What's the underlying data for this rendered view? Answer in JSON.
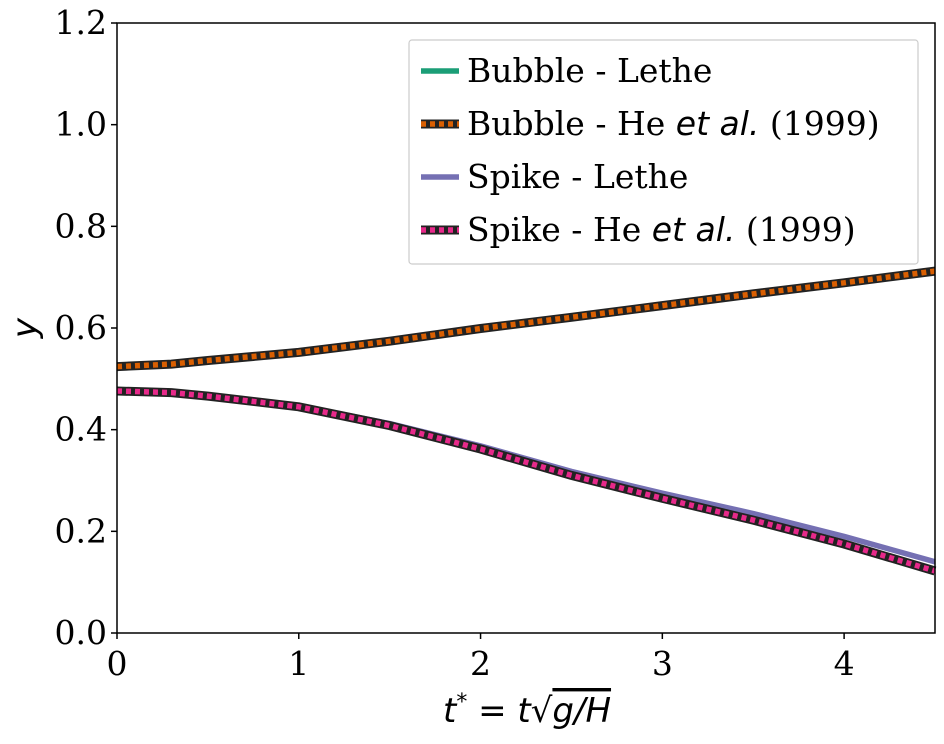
{
  "chart_data": {
    "type": "line",
    "xlabel": "t* = t√g/H",
    "xlabel_parts": {
      "t_star": "t",
      "star": "*",
      "eq": " = t",
      "radicand": "g/H"
    },
    "ylabel": "y",
    "xlim": [
      0,
      4.5
    ],
    "ylim": [
      0,
      1.2
    ],
    "xticks": [
      0,
      1,
      2,
      3,
      4
    ],
    "xtick_labels": [
      "0",
      "1",
      "2",
      "3",
      "4"
    ],
    "yticks": [
      0.0,
      0.2,
      0.4,
      0.6,
      0.8,
      1.0,
      1.2
    ],
    "ytick_labels": [
      "0.0",
      "0.2",
      "0.4",
      "0.6",
      "0.8",
      "1.0",
      "1.2"
    ],
    "grid": false,
    "legend_position": "top-right",
    "series": [
      {
        "name": "Bubble - Lethe",
        "name_parts": {
          "pre": "Bubble - Lethe",
          "italic": "",
          "post": ""
        },
        "style": "solid",
        "color": "#1b9e77",
        "x": [
          0,
          0.3,
          0.5,
          1.0,
          1.5,
          2.0,
          2.5,
          3.0,
          3.5,
          4.0,
          4.5
        ],
        "y": [
          0.525,
          0.53,
          0.537,
          0.553,
          0.575,
          0.6,
          0.622,
          0.645,
          0.668,
          0.69,
          0.713
        ]
      },
      {
        "name": "Bubble - He et al. (1999)",
        "name_parts": {
          "pre": "Bubble - He ",
          "italic": "et al.",
          "post": " (1999)"
        },
        "style": "dotted",
        "color": "#d95f02",
        "x": [
          0,
          0.3,
          0.5,
          1.0,
          1.5,
          2.0,
          2.5,
          3.0,
          3.5,
          4.0,
          4.5
        ],
        "y": [
          0.524,
          0.529,
          0.536,
          0.552,
          0.574,
          0.599,
          0.621,
          0.644,
          0.667,
          0.689,
          0.712
        ]
      },
      {
        "name": "Spike - Lethe",
        "name_parts": {
          "pre": "Spike - Lethe",
          "italic": "",
          "post": ""
        },
        "style": "solid",
        "color": "#7570b3",
        "x": [
          0,
          0.3,
          0.5,
          1.0,
          1.5,
          2.0,
          2.5,
          3.0,
          3.5,
          4.0,
          4.5
        ],
        "y": [
          0.477,
          0.474,
          0.467,
          0.447,
          0.412,
          0.368,
          0.318,
          0.275,
          0.235,
          0.19,
          0.14
        ]
      },
      {
        "name": "Spike - He et al. (1999)",
        "name_parts": {
          "pre": "Spike - He ",
          "italic": "et al.",
          "post": " (1999)"
        },
        "style": "dotted",
        "color": "#e7298a",
        "x": [
          0,
          0.3,
          0.5,
          1.0,
          1.5,
          2.0,
          2.5,
          3.0,
          3.5,
          4.0,
          4.5
        ],
        "y": [
          0.476,
          0.473,
          0.466,
          0.445,
          0.408,
          0.362,
          0.31,
          0.265,
          0.222,
          0.175,
          0.122
        ]
      }
    ]
  }
}
